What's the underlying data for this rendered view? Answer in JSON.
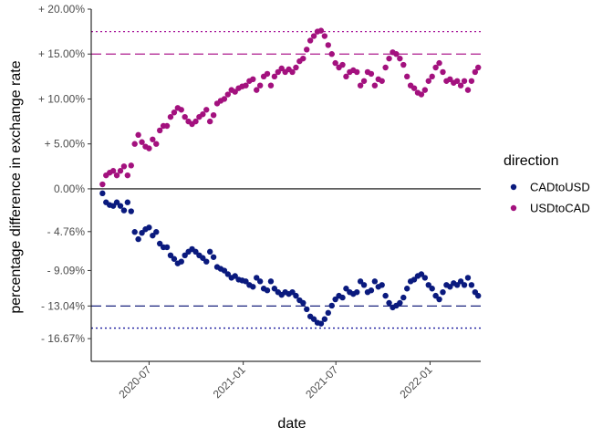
{
  "chart_data": {
    "type": "scatter",
    "title": "",
    "xlabel": "date",
    "ylabel": "percentage difference in exchange rate",
    "x_ticks": [
      "2020-07",
      "2021-01",
      "2021-07",
      "2022-01"
    ],
    "x_tick_dates": [
      "2020-07-01",
      "2021-01-01",
      "2021-07-01",
      "2022-01-01"
    ],
    "xlim": [
      "2020-03-10",
      "2022-04-10"
    ],
    "y_ticks": [
      {
        "value": 20.0,
        "label": "+ 20.00%"
      },
      {
        "value": 15.0,
        "label": "+ 15.00%"
      },
      {
        "value": 10.0,
        "label": "+ 10.00%"
      },
      {
        "value": 5.0,
        "label": "+ 5.00%"
      },
      {
        "value": 0.0,
        "label": "0.00%"
      },
      {
        "value": -4.76,
        "label": "- 4.76%"
      },
      {
        "value": -9.09,
        "label": "- 9.09%"
      },
      {
        "value": -13.04,
        "label": "- 13.04%"
      },
      {
        "value": -16.67,
        "label": "- 16.67%"
      }
    ],
    "ylim": [
      -19.2,
      20.0
    ],
    "grid": false,
    "legend": {
      "title": "direction",
      "position": "right",
      "entries": [
        "CADtoUSD",
        "USDtoCAD"
      ]
    },
    "reference_lines": [
      {
        "y": 0.0,
        "style": "solid",
        "color": "#000000"
      },
      {
        "y": 15.0,
        "style": "dashed",
        "color": "#AE1C8E"
      },
      {
        "y": 17.5,
        "style": "dotted",
        "color": "#A8169A"
      },
      {
        "y": -13.04,
        "style": "dashed",
        "color": "#1A237E"
      },
      {
        "y": -15.5,
        "style": "dotted",
        "color": "#1A1A9E"
      }
    ],
    "series": [
      {
        "name": "USDtoCAD",
        "color": "#A3117E",
        "points": [
          [
            "2020-04-01",
            0.5
          ],
          [
            "2020-04-08",
            1.5
          ],
          [
            "2020-04-15",
            1.8
          ],
          [
            "2020-04-22",
            2.0
          ],
          [
            "2020-04-29",
            1.5
          ],
          [
            "2020-05-06",
            2.0
          ],
          [
            "2020-05-13",
            2.5
          ],
          [
            "2020-05-20",
            1.5
          ],
          [
            "2020-05-27",
            2.6
          ],
          [
            "2020-06-03",
            5.0
          ],
          [
            "2020-06-10",
            6.0
          ],
          [
            "2020-06-17",
            5.2
          ],
          [
            "2020-06-24",
            4.7
          ],
          [
            "2020-07-01",
            4.5
          ],
          [
            "2020-07-08",
            5.5
          ],
          [
            "2020-07-15",
            5.0
          ],
          [
            "2020-07-22",
            6.5
          ],
          [
            "2020-07-29",
            7.0
          ],
          [
            "2020-08-05",
            7.0
          ],
          [
            "2020-08-12",
            8.0
          ],
          [
            "2020-08-19",
            8.5
          ],
          [
            "2020-08-26",
            9.0
          ],
          [
            "2020-09-02",
            8.8
          ],
          [
            "2020-09-09",
            8.0
          ],
          [
            "2020-09-16",
            7.5
          ],
          [
            "2020-09-23",
            7.2
          ],
          [
            "2020-09-30",
            7.5
          ],
          [
            "2020-10-07",
            8.0
          ],
          [
            "2020-10-14",
            8.3
          ],
          [
            "2020-10-21",
            8.8
          ],
          [
            "2020-10-28",
            7.5
          ],
          [
            "2020-11-04",
            8.2
          ],
          [
            "2020-11-11",
            9.5
          ],
          [
            "2020-11-18",
            9.8
          ],
          [
            "2020-11-25",
            10.0
          ],
          [
            "2020-12-02",
            10.5
          ],
          [
            "2020-12-09",
            11.0
          ],
          [
            "2020-12-16",
            10.8
          ],
          [
            "2020-12-23",
            11.2
          ],
          [
            "2020-12-30",
            11.4
          ],
          [
            "2021-01-06",
            11.5
          ],
          [
            "2021-01-13",
            12.0
          ],
          [
            "2021-01-20",
            12.2
          ],
          [
            "2021-01-27",
            11.0
          ],
          [
            "2021-02-03",
            11.5
          ],
          [
            "2021-02-10",
            12.5
          ],
          [
            "2021-02-17",
            12.8
          ],
          [
            "2021-02-24",
            11.5
          ],
          [
            "2021-03-03",
            12.5
          ],
          [
            "2021-03-10",
            13.0
          ],
          [
            "2021-03-17",
            13.4
          ],
          [
            "2021-03-24",
            13.0
          ],
          [
            "2021-03-31",
            13.3
          ],
          [
            "2021-04-07",
            13.0
          ],
          [
            "2021-04-14",
            13.5
          ],
          [
            "2021-04-21",
            14.2
          ],
          [
            "2021-04-28",
            14.5
          ],
          [
            "2021-05-05",
            15.5
          ],
          [
            "2021-05-12",
            16.5
          ],
          [
            "2021-05-19",
            17.0
          ],
          [
            "2021-05-26",
            17.5
          ],
          [
            "2021-06-02",
            17.6
          ],
          [
            "2021-06-09",
            17.0
          ],
          [
            "2021-06-16",
            16.0
          ],
          [
            "2021-06-23",
            15.0
          ],
          [
            "2021-06-30",
            14.0
          ],
          [
            "2021-07-07",
            13.5
          ],
          [
            "2021-07-14",
            13.8
          ],
          [
            "2021-07-21",
            12.5
          ],
          [
            "2021-07-28",
            13.0
          ],
          [
            "2021-08-04",
            13.2
          ],
          [
            "2021-08-11",
            13.0
          ],
          [
            "2021-08-18",
            11.5
          ],
          [
            "2021-08-25",
            12.0
          ],
          [
            "2021-09-01",
            13.0
          ],
          [
            "2021-09-08",
            12.8
          ],
          [
            "2021-09-15",
            11.5
          ],
          [
            "2021-09-22",
            12.2
          ],
          [
            "2021-09-29",
            12.0
          ],
          [
            "2021-10-06",
            13.5
          ],
          [
            "2021-10-13",
            14.5
          ],
          [
            "2021-10-20",
            15.2
          ],
          [
            "2021-10-27",
            15.0
          ],
          [
            "2021-11-03",
            14.5
          ],
          [
            "2021-11-10",
            13.8
          ],
          [
            "2021-11-17",
            12.5
          ],
          [
            "2021-11-24",
            11.5
          ],
          [
            "2021-12-01",
            11.2
          ],
          [
            "2021-12-08",
            10.7
          ],
          [
            "2021-12-15",
            10.5
          ],
          [
            "2021-12-22",
            11.0
          ],
          [
            "2021-12-29",
            12.0
          ],
          [
            "2022-01-05",
            12.5
          ],
          [
            "2022-01-12",
            13.5
          ],
          [
            "2022-01-19",
            14.0
          ],
          [
            "2022-01-26",
            13.0
          ],
          [
            "2022-02-02",
            12.0
          ],
          [
            "2022-02-09",
            12.2
          ],
          [
            "2022-02-16",
            11.8
          ],
          [
            "2022-02-23",
            12.0
          ],
          [
            "2022-03-02",
            11.5
          ],
          [
            "2022-03-09",
            12.0
          ],
          [
            "2022-03-16",
            11.0
          ],
          [
            "2022-03-23",
            12.0
          ],
          [
            "2022-03-30",
            13.0
          ],
          [
            "2022-04-05",
            13.5
          ]
        ]
      },
      {
        "name": "CADtoUSD",
        "color": "#0A1A7E",
        "points": [
          [
            "2020-04-01",
            -0.5
          ],
          [
            "2020-04-08",
            -1.5
          ],
          [
            "2020-04-15",
            -1.8
          ],
          [
            "2020-04-22",
            -1.9
          ],
          [
            "2020-04-29",
            -1.5
          ],
          [
            "2020-05-06",
            -1.9
          ],
          [
            "2020-05-13",
            -2.4
          ],
          [
            "2020-05-20",
            -1.5
          ],
          [
            "2020-05-27",
            -2.5
          ],
          [
            "2020-06-03",
            -4.8
          ],
          [
            "2020-06-10",
            -5.6
          ],
          [
            "2020-06-17",
            -4.9
          ],
          [
            "2020-06-24",
            -4.5
          ],
          [
            "2020-07-01",
            -4.3
          ],
          [
            "2020-07-08",
            -5.2
          ],
          [
            "2020-07-15",
            -4.8
          ],
          [
            "2020-07-22",
            -6.1
          ],
          [
            "2020-07-29",
            -6.5
          ],
          [
            "2020-08-05",
            -6.5
          ],
          [
            "2020-08-12",
            -7.4
          ],
          [
            "2020-08-19",
            -7.8
          ],
          [
            "2020-08-26",
            -8.3
          ],
          [
            "2020-09-02",
            -8.1
          ],
          [
            "2020-09-09",
            -7.4
          ],
          [
            "2020-09-16",
            -7.0
          ],
          [
            "2020-09-23",
            -6.7
          ],
          [
            "2020-09-30",
            -7.0
          ],
          [
            "2020-10-07",
            -7.4
          ],
          [
            "2020-10-14",
            -7.7
          ],
          [
            "2020-10-21",
            -8.1
          ],
          [
            "2020-10-28",
            -7.0
          ],
          [
            "2020-11-04",
            -7.6
          ],
          [
            "2020-11-11",
            -8.7
          ],
          [
            "2020-11-18",
            -8.9
          ],
          [
            "2020-11-25",
            -9.1
          ],
          [
            "2020-12-02",
            -9.5
          ],
          [
            "2020-12-09",
            -9.9
          ],
          [
            "2020-12-16",
            -9.7
          ],
          [
            "2020-12-23",
            -10.1
          ],
          [
            "2020-12-30",
            -10.2
          ],
          [
            "2021-01-06",
            -10.3
          ],
          [
            "2021-01-13",
            -10.7
          ],
          [
            "2021-01-20",
            -10.9
          ],
          [
            "2021-01-27",
            -9.9
          ],
          [
            "2021-02-03",
            -10.3
          ],
          [
            "2021-02-10",
            -11.1
          ],
          [
            "2021-02-17",
            -11.3
          ],
          [
            "2021-02-24",
            -10.3
          ],
          [
            "2021-03-03",
            -11.1
          ],
          [
            "2021-03-10",
            -11.5
          ],
          [
            "2021-03-17",
            -11.8
          ],
          [
            "2021-03-24",
            -11.5
          ],
          [
            "2021-03-31",
            -11.7
          ],
          [
            "2021-04-07",
            -11.5
          ],
          [
            "2021-04-14",
            -11.9
          ],
          [
            "2021-04-21",
            -12.4
          ],
          [
            "2021-04-28",
            -12.7
          ],
          [
            "2021-05-05",
            -13.4
          ],
          [
            "2021-05-12",
            -14.2
          ],
          [
            "2021-05-19",
            -14.5
          ],
          [
            "2021-05-26",
            -14.9
          ],
          [
            "2021-06-02",
            -15.0
          ],
          [
            "2021-06-09",
            -14.5
          ],
          [
            "2021-06-16",
            -13.8
          ],
          [
            "2021-06-23",
            -13.0
          ],
          [
            "2021-06-30",
            -12.3
          ],
          [
            "2021-07-07",
            -11.9
          ],
          [
            "2021-07-14",
            -12.1
          ],
          [
            "2021-07-21",
            -11.1
          ],
          [
            "2021-07-28",
            -11.5
          ],
          [
            "2021-08-04",
            -11.7
          ],
          [
            "2021-08-11",
            -11.5
          ],
          [
            "2021-08-18",
            -10.3
          ],
          [
            "2021-08-25",
            -10.7
          ],
          [
            "2021-09-01",
            -11.5
          ],
          [
            "2021-09-08",
            -11.3
          ],
          [
            "2021-09-15",
            -10.3
          ],
          [
            "2021-09-22",
            -10.9
          ],
          [
            "2021-09-29",
            -10.7
          ],
          [
            "2021-10-06",
            -11.9
          ],
          [
            "2021-10-13",
            -12.7
          ],
          [
            "2021-10-20",
            -13.2
          ],
          [
            "2021-10-27",
            -13.0
          ],
          [
            "2021-11-03",
            -12.7
          ],
          [
            "2021-11-10",
            -12.1
          ],
          [
            "2021-11-17",
            -11.1
          ],
          [
            "2021-11-24",
            -10.3
          ],
          [
            "2021-12-01",
            -10.1
          ],
          [
            "2021-12-08",
            -9.7
          ],
          [
            "2021-12-15",
            -9.5
          ],
          [
            "2021-12-22",
            -9.9
          ],
          [
            "2021-12-29",
            -10.7
          ],
          [
            "2022-01-05",
            -11.1
          ],
          [
            "2022-01-12",
            -11.9
          ],
          [
            "2022-01-19",
            -12.3
          ],
          [
            "2022-01-26",
            -11.5
          ],
          [
            "2022-02-02",
            -10.7
          ],
          [
            "2022-02-09",
            -10.9
          ],
          [
            "2022-02-16",
            -10.5
          ],
          [
            "2022-02-23",
            -10.7
          ],
          [
            "2022-03-02",
            -10.3
          ],
          [
            "2022-03-09",
            -10.7
          ],
          [
            "2022-03-16",
            -9.9
          ],
          [
            "2022-03-23",
            -10.7
          ],
          [
            "2022-03-30",
            -11.5
          ],
          [
            "2022-04-05",
            -11.9
          ]
        ]
      }
    ]
  }
}
